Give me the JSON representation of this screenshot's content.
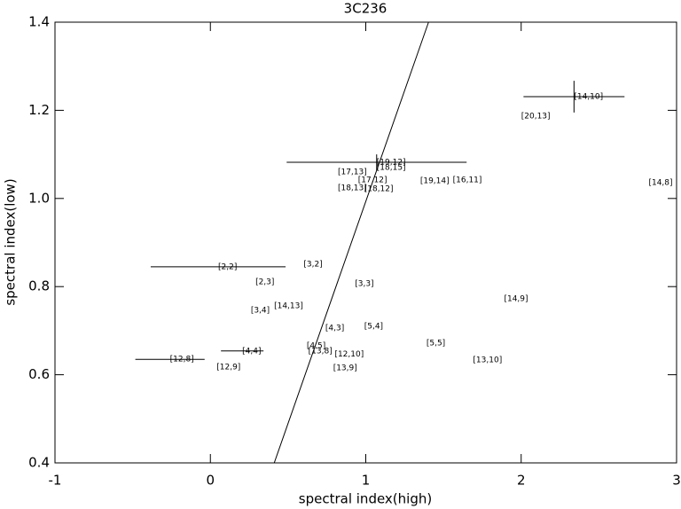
{
  "chart_data": {
    "type": "scatter",
    "title": "3C236",
    "x_label": "spectral index(high)",
    "y_label": "spectral index(low)",
    "xlim": [
      -1,
      3
    ],
    "ylim": [
      0.4,
      1.4
    ],
    "xticks": [
      -1,
      0,
      1,
      2,
      3
    ],
    "yticks": [
      0.4,
      0.6,
      0.8,
      {
        "value": 1,
        "label": "1.0"
      },
      1.2,
      1.4
    ],
    "labels": [
      "[14,10]",
      "[20,13]",
      "[14,8]",
      "[19,12]",
      "[18,15]",
      "[17,13]",
      "[17,12]",
      "[18,13]",
      "[18,12]",
      "[19,14]",
      "[16,11]",
      "[2,2]",
      "[3,2]",
      "[2,3]",
      "[3,3]",
      "[14,9]",
      "[14,13]",
      "[3,4]",
      "[4,3]",
      "[5,4]",
      "[5,5]",
      "[4,5]",
      "[13,8]",
      "[12,10]",
      "[4,4]",
      "[13,10]",
      "[12,8]",
      "[12,9]",
      "[13,9]"
    ],
    "x": [
      2.34,
      2.0,
      2.82,
      1.07,
      1.07,
      0.82,
      0.95,
      0.82,
      0.99,
      1.35,
      1.56,
      0.05,
      0.6,
      0.29,
      0.93,
      1.89,
      0.41,
      0.26,
      0.74,
      0.99,
      1.39,
      0.62,
      0.63,
      0.8,
      0.205,
      1.69,
      -0.26,
      0.04,
      0.79
    ],
    "y": [
      1.231,
      1.187,
      1.036,
      1.082,
      1.07,
      1.06,
      1.042,
      1.024,
      1.022,
      1.04,
      1.042,
      0.845,
      0.851,
      0.81,
      0.806,
      0.772,
      0.756,
      0.746,
      0.706,
      0.71,
      0.672,
      0.666,
      0.654,
      0.646,
      0.654,
      0.633,
      0.635,
      0.617,
      0.615
    ],
    "xerr": [
      0.325,
      null,
      null,
      0.579,
      null,
      null,
      null,
      null,
      null,
      null,
      null,
      0.434,
      null,
      null,
      null,
      null,
      null,
      null,
      null,
      null,
      null,
      null,
      null,
      null,
      0.137,
      null,
      0.223,
      null,
      null
    ],
    "yerr": [
      0.036,
      null,
      null,
      0.018,
      null,
      null,
      null,
      null,
      null,
      null,
      null,
      null,
      null,
      null,
      null,
      null,
      null,
      null,
      null,
      null,
      null,
      null,
      null,
      null,
      null,
      null,
      null,
      null,
      null
    ],
    "fit_line": {
      "x": [
        0.411,
        1.404
      ],
      "y": [
        0.4,
        1.4
      ]
    }
  }
}
